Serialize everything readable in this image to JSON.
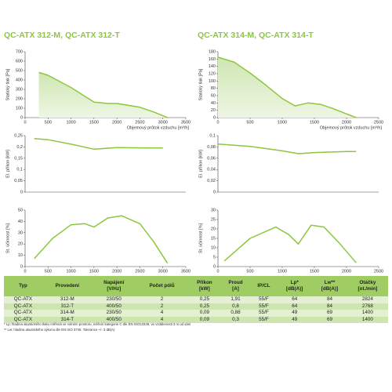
{
  "titles": [
    "QC-ATX 312-M, QC-ATX 312-T",
    "QC-ATX 314-M, QC-ATX 314-T"
  ],
  "chart_data": [
    {
      "type": "area",
      "y_label": "Statický tlak [Pa]",
      "x_label": "Objemový průtok vzduchu [m³/h]",
      "color": "#8dc63f",
      "x": [
        300,
        500,
        1000,
        1500,
        1800,
        2000,
        2500,
        2800,
        3000,
        3100
      ],
      "values": [
        480,
        450,
        320,
        165,
        150,
        150,
        110,
        60,
        20,
        0
      ],
      "xlim": [
        0,
        3500
      ],
      "xticks": [
        0,
        500,
        1000,
        1500,
        2000,
        2500,
        3000,
        3500
      ],
      "ylim": [
        0,
        700
      ],
      "yticks": [
        0,
        100,
        200,
        300,
        400,
        500,
        600,
        700
      ]
    },
    {
      "type": "line",
      "y_label": "El. příkon [kW]",
      "color": "#8dc63f",
      "x": [
        200,
        500,
        1000,
        1500,
        2000,
        2500,
        3000
      ],
      "values": [
        0.237,
        0.232,
        0.212,
        0.19,
        0.197,
        0.196,
        0.195
      ],
      "xlim": [
        0,
        3500
      ],
      "ylim": [
        0,
        0.25
      ],
      "yticks": [
        0,
        {
          "value": 0.05,
          "label": "0,05"
        },
        {
          "value": 0.1,
          "label": "0,1"
        },
        {
          "value": 0.15,
          "label": "0,15"
        },
        {
          "value": 0.2,
          "label": "0,2"
        },
        {
          "value": 0.25,
          "label": "0,25"
        }
      ]
    },
    {
      "type": "line",
      "y_label": "St. účinnost [%]",
      "color": "#8dc63f",
      "x": [
        200,
        600,
        1000,
        1300,
        1500,
        1800,
        2100,
        2500,
        2800,
        3100
      ],
      "values": [
        7,
        25,
        37,
        38,
        35,
        43,
        45,
        38,
        22,
        3
      ],
      "xlim": [
        0,
        3500
      ],
      "xticks": [
        0,
        500,
        1000,
        1500,
        2000,
        2500,
        3000,
        3500
      ],
      "ylim": [
        0,
        50
      ],
      "yticks": [
        0,
        10,
        20,
        30,
        40,
        50
      ]
    },
    {
      "type": "area",
      "y_label": "Statický tlak [Pa]",
      "x_label": "Objemový průtok vzduchu [m³/h]",
      "color": "#8dc63f",
      "x": [
        0,
        250,
        500,
        750,
        1000,
        1200,
        1400,
        1600,
        1800,
        2000,
        2150
      ],
      "values": [
        165,
        152,
        122,
        88,
        52,
        32,
        40,
        36,
        24,
        10,
        0
      ],
      "xlim": [
        0,
        2500
      ],
      "xticks": [
        0,
        500,
        1000,
        1500,
        2000,
        2500
      ],
      "ylim": [
        0,
        180
      ],
      "yticks": [
        0,
        20,
        40,
        60,
        80,
        100,
        120,
        140,
        160,
        180
      ]
    },
    {
      "type": "line",
      "y_label": "El. příkon [kW]",
      "color": "#8dc63f",
      "x": [
        0,
        500,
        1000,
        1250,
        1500,
        2000,
        2150
      ],
      "values": [
        0.085,
        0.081,
        0.073,
        0.068,
        0.07,
        0.072,
        0.072
      ],
      "xlim": [
        0,
        2500
      ],
      "ylim": [
        0,
        0.1
      ],
      "yticks": [
        0,
        {
          "value": 0.02,
          "label": "0,02"
        },
        {
          "value": 0.04,
          "label": "0,04"
        },
        {
          "value": 0.06,
          "label": "0,06"
        },
        {
          "value": 0.08,
          "label": "0,08"
        },
        {
          "value": 0.1,
          "label": "0,1"
        }
      ]
    },
    {
      "type": "line",
      "y_label": "St. účinnost [%]",
      "color": "#8dc63f",
      "x": [
        100,
        500,
        900,
        1100,
        1250,
        1450,
        1650,
        1900,
        2150
      ],
      "values": [
        3,
        15,
        21,
        17,
        12,
        22,
        21,
        12,
        2
      ],
      "xlim": [
        0,
        2500
      ],
      "xticks": [
        0,
        500,
        1000,
        1500,
        2000,
        2500
      ],
      "ylim": [
        0,
        30
      ],
      "yticks": [
        0,
        5,
        10,
        15,
        20,
        25,
        30
      ]
    }
  ],
  "table": {
    "header": [
      {
        "name": "Typ"
      },
      {
        "name": "Provedení"
      },
      {
        "name": "Napájení",
        "unit": "[V/Hz]"
      },
      {
        "name": "Počet pólů"
      },
      {
        "name": "Příkon",
        "unit": "[kW]"
      },
      {
        "name": "Proud",
        "unit": "[A]"
      },
      {
        "name": "IP/CL"
      },
      {
        "name": "Lp*",
        "unit": "[dB(A)]"
      },
      {
        "name": "Lw**",
        "unit": "[dB(A)]"
      },
      {
        "name": "Otáčky",
        "unit": "[ot./min]"
      }
    ],
    "rows": [
      [
        "QC-ATX",
        "312-M",
        "230/50",
        "2",
        "0,25",
        "1,91",
        "55/F",
        "64",
        "84",
        "2824"
      ],
      [
        "QC-ATX",
        "312-T",
        "400/50",
        "2",
        "0,25",
        "0,8",
        "55/F",
        "64",
        "84",
        "2768"
      ],
      [
        "QC-ATX",
        "314-M",
        "230/50",
        "4",
        "0,09",
        "0,88",
        "55/F",
        "49",
        "69",
        "1400"
      ],
      [
        "QC-ATX",
        "314-T",
        "400/50",
        "4",
        "0,09",
        "0,3",
        "55/F",
        "49",
        "69",
        "1400"
      ]
    ]
  },
  "footnotes": [
    "* Lp: hladina akustického tlaku měřená ve volném prostoru, měření kategorie C dle EN ISO13349, ve vzdálenosti 3 m od sání",
    "** Lw: hladina akustického výkonu dle EN ISO 3746. Tolerance +/- 3 dB(A)"
  ]
}
